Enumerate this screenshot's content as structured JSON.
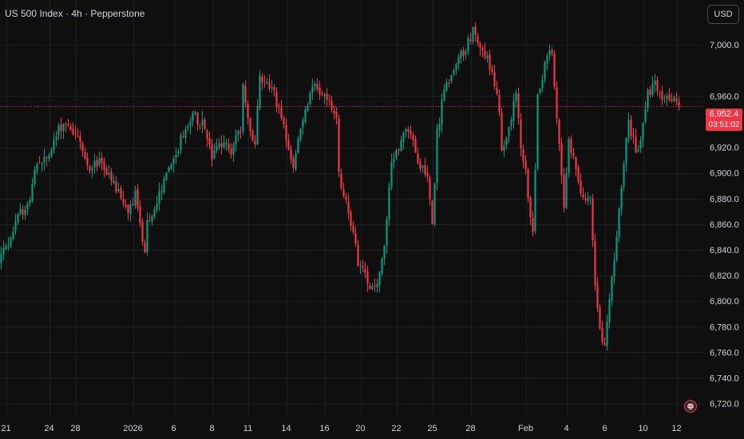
{
  "header": {
    "symbol_title": "US 500 Index · 4h · Pepperstone",
    "currency_label": "USD"
  },
  "price_badge": {
    "price_text": "6,952.4",
    "countdown_text": "03:51:02",
    "color": "#f23645"
  },
  "exchange_icon": "us-flag-icon",
  "colors": {
    "background": "#0f0f0f",
    "up": "#089981",
    "down": "#f23645",
    "grid": "#1e1e1e",
    "text": "#d1d4dc"
  },
  "chart_data": {
    "type": "candlestick",
    "title": "US 500 Index · 4h · Pepperstone",
    "timeframe": "4h",
    "ylim": [
      6711,
      7035
    ],
    "grid": true,
    "current_price": 6952.4,
    "y_ticks": [
      {
        "value": 7000,
        "label": "7,000.0"
      },
      {
        "value": 6960,
        "label": "6,960.0"
      },
      {
        "value": 6920,
        "label": "6,920.0"
      },
      {
        "value": 6900,
        "label": "6,900.0"
      },
      {
        "value": 6880,
        "label": "6,880.0"
      },
      {
        "value": 6860,
        "label": "6,860.0"
      },
      {
        "value": 6840,
        "label": "6,840.0"
      },
      {
        "value": 6820,
        "label": "6,820.0"
      },
      {
        "value": 6800,
        "label": "6,800.0"
      },
      {
        "value": 6780,
        "label": "6,780.0"
      },
      {
        "value": 6760,
        "label": "6,760.0"
      },
      {
        "value": 6740,
        "label": "6,740.0"
      },
      {
        "value": 6720,
        "label": "6,720.0"
      }
    ],
    "x_ticks": [
      {
        "bar": 2,
        "label": "21"
      },
      {
        "bar": 20,
        "label": "24"
      },
      {
        "bar": 31,
        "label": "28"
      },
      {
        "bar": 55,
        "label": "2026"
      },
      {
        "bar": 72,
        "label": "6"
      },
      {
        "bar": 88,
        "label": "8"
      },
      {
        "bar": 103,
        "label": "11"
      },
      {
        "bar": 119,
        "label": "14"
      },
      {
        "bar": 135,
        "label": "16"
      },
      {
        "bar": 150,
        "label": "20"
      },
      {
        "bar": 165,
        "label": "22"
      },
      {
        "bar": 180,
        "label": "25"
      },
      {
        "bar": 196,
        "label": "28"
      },
      {
        "bar": 219,
        "label": "Feb"
      },
      {
        "bar": 236,
        "label": "4"
      },
      {
        "bar": 252,
        "label": "6"
      },
      {
        "bar": 268,
        "label": "10"
      },
      {
        "bar": 282,
        "label": "12"
      }
    ],
    "anchors": [
      [
        0,
        6835
      ],
      [
        4,
        6851
      ],
      [
        8,
        6868
      ],
      [
        12,
        6880
      ],
      [
        15,
        6908
      ],
      [
        20,
        6912
      ],
      [
        24,
        6935
      ],
      [
        27,
        6940
      ],
      [
        32,
        6928
      ],
      [
        36,
        6905
      ],
      [
        42,
        6908
      ],
      [
        46,
        6893
      ],
      [
        50,
        6880
      ],
      [
        53,
        6870
      ],
      [
        56,
        6883
      ],
      [
        60,
        6836
      ],
      [
        61,
        6860
      ],
      [
        65,
        6878
      ],
      [
        70,
        6902
      ],
      [
        75,
        6925
      ],
      [
        80,
        6945
      ],
      [
        84,
        6938
      ],
      [
        88,
        6913
      ],
      [
        92,
        6922
      ],
      [
        96,
        6918
      ],
      [
        100,
        6935
      ],
      [
        101,
        6965
      ],
      [
        104,
        6930
      ],
      [
        106,
        6925
      ],
      [
        108,
        6975
      ],
      [
        112,
        6970
      ],
      [
        116,
        6950
      ],
      [
        119,
        6925
      ],
      [
        122,
        6905
      ],
      [
        125,
        6935
      ],
      [
        130,
        6970
      ],
      [
        134,
        6960
      ],
      [
        137,
        6955
      ],
      [
        140,
        6945
      ],
      [
        141,
        6898
      ],
      [
        143,
        6885
      ],
      [
        146,
        6863
      ],
      [
        149,
        6830
      ],
      [
        152,
        6820
      ],
      [
        155,
        6810
      ],
      [
        158,
        6820
      ],
      [
        161,
        6860
      ],
      [
        163,
        6910
      ],
      [
        166,
        6920
      ],
      [
        170,
        6935
      ],
      [
        174,
        6910
      ],
      [
        178,
        6900
      ],
      [
        180,
        6860
      ],
      [
        182,
        6930
      ],
      [
        185,
        6965
      ],
      [
        188,
        6977
      ],
      [
        193,
        6995
      ],
      [
        197,
        7010
      ],
      [
        200,
        7000
      ],
      [
        204,
        6985
      ],
      [
        207,
        6965
      ],
      [
        209,
        6920
      ],
      [
        212,
        6933
      ],
      [
        215,
        6962
      ],
      [
        217,
        6918
      ],
      [
        219,
        6900
      ],
      [
        222,
        6852
      ],
      [
        224,
        6960
      ],
      [
        228,
        6995
      ],
      [
        230,
        6990
      ],
      [
        232,
        6943
      ],
      [
        235,
        6870
      ],
      [
        237,
        6925
      ],
      [
        240,
        6905
      ],
      [
        243,
        6880
      ],
      [
        246,
        6880
      ],
      [
        248,
        6812
      ],
      [
        250,
        6775
      ],
      [
        252,
        6770
      ],
      [
        254,
        6800
      ],
      [
        256,
        6830
      ],
      [
        258,
        6875
      ],
      [
        260,
        6910
      ],
      [
        262,
        6940
      ],
      [
        265,
        6918
      ],
      [
        267,
        6925
      ],
      [
        270,
        6962
      ],
      [
        273,
        6968
      ],
      [
        276,
        6960
      ],
      [
        279,
        6955
      ],
      [
        281,
        6958
      ],
      [
        283,
        6952.4
      ]
    ],
    "candles_count": 284
  }
}
